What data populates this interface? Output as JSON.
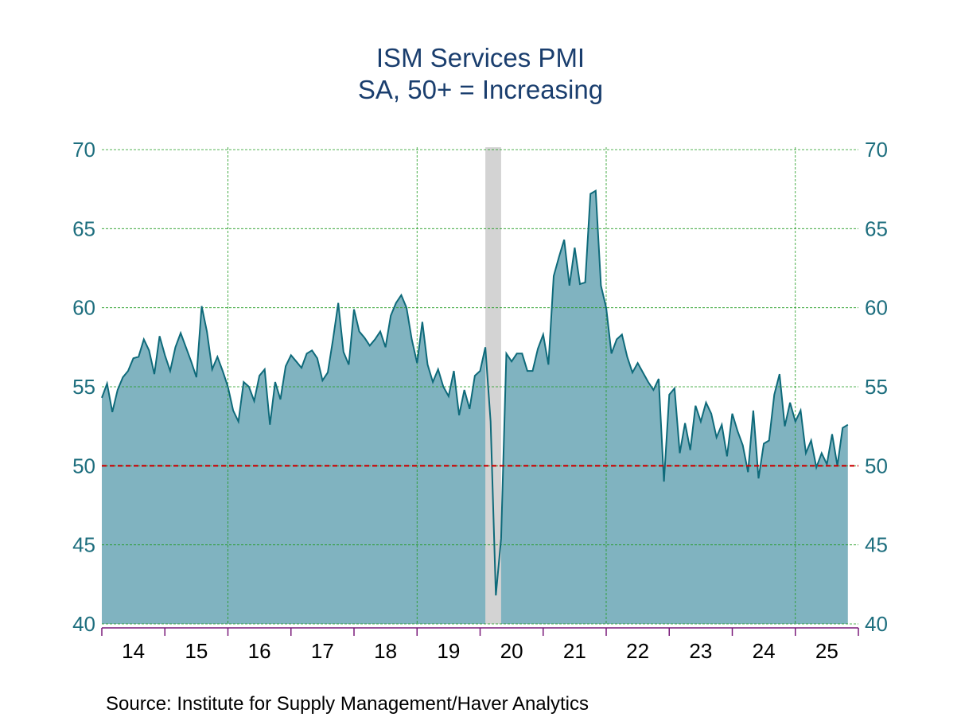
{
  "chart_data": {
    "type": "area",
    "title": "ISM Services PMI",
    "subtitle": "SA, 50+ = Increasing",
    "source": "Source:  Institute for Supply Management/Haver Analytics",
    "xlabel": "",
    "ylabel": "",
    "start": "2014-01",
    "frequency": "monthly",
    "xlim": [
      2014,
      2026
    ],
    "ylim": [
      40,
      70
    ],
    "yticks": [
      40,
      45,
      50,
      55,
      60,
      65,
      70
    ],
    "xtick_labels": [
      "14",
      "15",
      "16",
      "17",
      "18",
      "19",
      "20",
      "21",
      "22",
      "23",
      "24",
      "25"
    ],
    "grid": true,
    "reference_line": {
      "value": 50,
      "color": "#cc0000",
      "style": "dashed"
    },
    "recession": {
      "start": "2020-02",
      "end": "2020-04",
      "color": "#d3d3d3"
    },
    "colors": {
      "line": "#0e6a7a",
      "fill": "#80b3c0",
      "grid": "#1e9a1e",
      "axis": "#7a1a7a",
      "tick_label": "#1d6e7e"
    },
    "series": [
      {
        "values": [
          54.3,
          55.2,
          53.4,
          54.8,
          55.6,
          56.0,
          56.8,
          56.9,
          58.0,
          57.3,
          55.8,
          58.2,
          57.0,
          56.0,
          57.5,
          58.4,
          57.5,
          56.6,
          55.6,
          60.1,
          58.5,
          56.1,
          56.9,
          56.0,
          55.0,
          53.5,
          52.8,
          55.3,
          55.0,
          54.1,
          55.7,
          56.1,
          52.6,
          55.3,
          54.2,
          56.3,
          57.0,
          56.6,
          56.2,
          57.1,
          57.3,
          56.8,
          55.4,
          55.9,
          58.0,
          60.3,
          57.2,
          56.4,
          59.9,
          58.5,
          58.1,
          57.6,
          58.0,
          58.5,
          57.5,
          59.5,
          60.3,
          60.8,
          60.0,
          58.0,
          56.5,
          59.1,
          56.4,
          55.3,
          56.1,
          55.0,
          54.4,
          56.0,
          53.2,
          54.8,
          53.6,
          55.7,
          56.0,
          57.5,
          52.8,
          41.8,
          45.4,
          57.1,
          56.6,
          57.1,
          57.1,
          56.0,
          56.0,
          57.4,
          58.3,
          56.4,
          62.0,
          63.2,
          64.3,
          61.4,
          63.8,
          61.5,
          61.6,
          67.2,
          67.4,
          61.4,
          60.0,
          57.1,
          58.0,
          58.3,
          56.9,
          55.9,
          56.5,
          55.9,
          55.3,
          54.8,
          55.5,
          49.0,
          54.5,
          54.9,
          50.8,
          52.7,
          51.0,
          53.8,
          52.8,
          54.0,
          53.3,
          51.8,
          52.6,
          50.6,
          53.3,
          52.2,
          51.3,
          49.6,
          53.5,
          49.2,
          51.4,
          51.6,
          54.5,
          55.8,
          52.5,
          54.0,
          52.8,
          53.5,
          50.8,
          51.6,
          49.9,
          50.8,
          50.1,
          52.0,
          50.0,
          52.4,
          52.6
        ]
      }
    ]
  }
}
